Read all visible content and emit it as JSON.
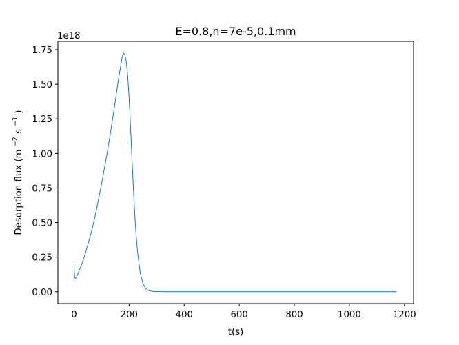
{
  "chart_data": {
    "type": "line",
    "title": "E=0.8,n=7e-5,0.1mm",
    "xlabel": "t(s)",
    "ylabel": {
      "prefix": "Desorption flux (m",
      "exp1": "−2",
      "middle": " s",
      "exp2": "−1",
      "suffix": ")"
    },
    "y_offset_label": "1e18",
    "xlim": [
      -58.7,
      1233.0
    ],
    "ylim": [
      -0.086,
      1.81
    ],
    "y_scale_factor": 1e+18,
    "x_ticks": [
      0,
      200,
      400,
      600,
      800,
      1000,
      1200
    ],
    "x_tick_labels": [
      "0",
      "200",
      "400",
      "600",
      "800",
      "1000",
      "1200"
    ],
    "y_ticks": [
      0.0,
      0.25,
      0.5,
      0.75,
      1.0,
      1.25,
      1.5,
      1.75
    ],
    "y_tick_labels": [
      "0.00",
      "0.25",
      "0.50",
      "0.75",
      "1.00",
      "1.25",
      "1.50",
      "1.75"
    ],
    "grid": false,
    "line_color": "#1f77b4",
    "series": [
      {
        "x": [
          0,
          0.5,
          1,
          2,
          3,
          5,
          8,
          12,
          20,
          30,
          40,
          50,
          60,
          70,
          80,
          90,
          100,
          110,
          120,
          130,
          140,
          150,
          160,
          170,
          175,
          180,
          185,
          190,
          195,
          200,
          205,
          210,
          215,
          220,
          225,
          230,
          240,
          250,
          260,
          270,
          280,
          290,
          300,
          320,
          350,
          400,
          500,
          600,
          800,
          1000,
          1170
        ],
        "y": [
          0.2,
          0.17,
          0.14,
          0.11,
          0.1,
          0.095,
          0.1,
          0.12,
          0.16,
          0.21,
          0.27,
          0.34,
          0.41,
          0.49,
          0.58,
          0.68,
          0.78,
          0.89,
          1.0,
          1.12,
          1.25,
          1.38,
          1.52,
          1.64,
          1.7,
          1.725,
          1.71,
          1.66,
          1.56,
          1.4,
          1.2,
          0.98,
          0.77,
          0.58,
          0.42,
          0.3,
          0.14,
          0.06,
          0.025,
          0.01,
          0.004,
          0.002,
          0.001,
          0.0005,
          0.0003,
          0.0002,
          0.0001,
          0.0001,
          0.0001,
          0.0001,
          0.0001
        ]
      }
    ]
  }
}
